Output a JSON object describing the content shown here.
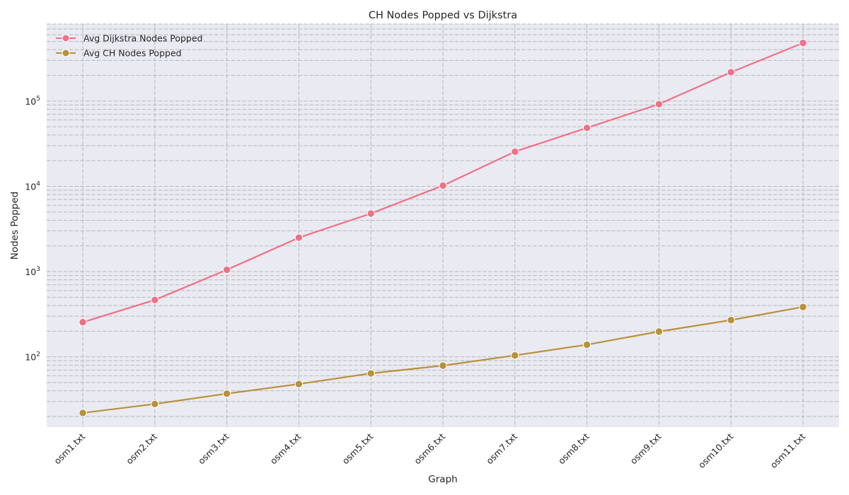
{
  "chart_data": {
    "type": "line",
    "title": "CH Nodes Popped vs Dijkstra",
    "xlabel": "Graph",
    "ylabel": "Nodes Popped",
    "yscale": "log",
    "ylim": [
      15,
      800000
    ],
    "y_ticks": [
      {
        "value": 100,
        "base": "10",
        "exp": "2"
      },
      {
        "value": 1000,
        "base": "10",
        "exp": "3"
      },
      {
        "value": 10000,
        "base": "10",
        "exp": "4"
      },
      {
        "value": 100000,
        "base": "10",
        "exp": "5"
      }
    ],
    "grid": true,
    "legend_position": "upper-left",
    "categories": [
      "osm1.txt",
      "osm2.txt",
      "osm3.txt",
      "osm4.txt",
      "osm5.txt",
      "osm6.txt",
      "osm7.txt",
      "osm8.txt",
      "osm9.txt",
      "osm10.txt",
      "osm11.txt"
    ],
    "series": [
      {
        "name": "Avg Dijkstra Nodes Popped",
        "color": "#f07085",
        "values": [
          255,
          465,
          1050,
          2500,
          4800,
          10200,
          25500,
          48500,
          92000,
          218000,
          480000
        ]
      },
      {
        "name": "Avg CH Nodes Popped",
        "color": "#b8913a",
        "values": [
          22,
          28,
          37,
          48,
          64,
          79,
          104,
          139,
          198,
          270,
          385
        ]
      }
    ]
  }
}
